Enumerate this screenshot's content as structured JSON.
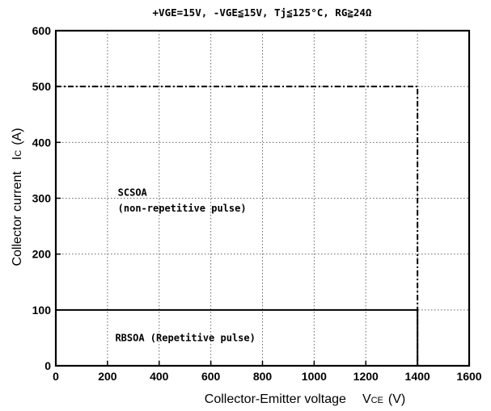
{
  "chart_data": {
    "type": "line",
    "title": "+VGE=15V, -VGE≦15V, Tj≦125°C, RG≧24Ω",
    "xlabel": "Collector-Emitter voltage",
    "xlabel_symbol": "VCE",
    "xlabel_symbol_main": "V",
    "xlabel_symbol_sub": "CE",
    "xlabel_unit": "(V)",
    "ylabel": "Collector current",
    "ylabel_symbol": "IC",
    "ylabel_symbol_main": "I",
    "ylabel_symbol_sub": "C",
    "ylabel_unit": "(A)",
    "xlim": [
      0,
      1600
    ],
    "ylim": [
      0,
      600
    ],
    "xticks": [
      0,
      200,
      400,
      600,
      800,
      1000,
      1200,
      1400,
      1600
    ],
    "yticks": [
      0,
      100,
      200,
      300,
      400,
      500,
      600
    ],
    "grid": true,
    "series": [
      {
        "name": "SCSOA",
        "style": "dash-dot",
        "x": [
          0,
          1400,
          1400
        ],
        "y": [
          500,
          500,
          0
        ]
      },
      {
        "name": "RBSOA",
        "style": "solid",
        "x": [
          0,
          1400,
          1400
        ],
        "y": [
          100,
          100,
          0
        ]
      }
    ],
    "annotations": [
      {
        "text": "SCSOA",
        "x": 240,
        "y": 310
      },
      {
        "text": "(non-repetitive pulse)",
        "x": 240,
        "y": 282
      },
      {
        "text": "RBSOA  (Repetitive pulse)",
        "x": 230,
        "y": 50
      }
    ]
  }
}
